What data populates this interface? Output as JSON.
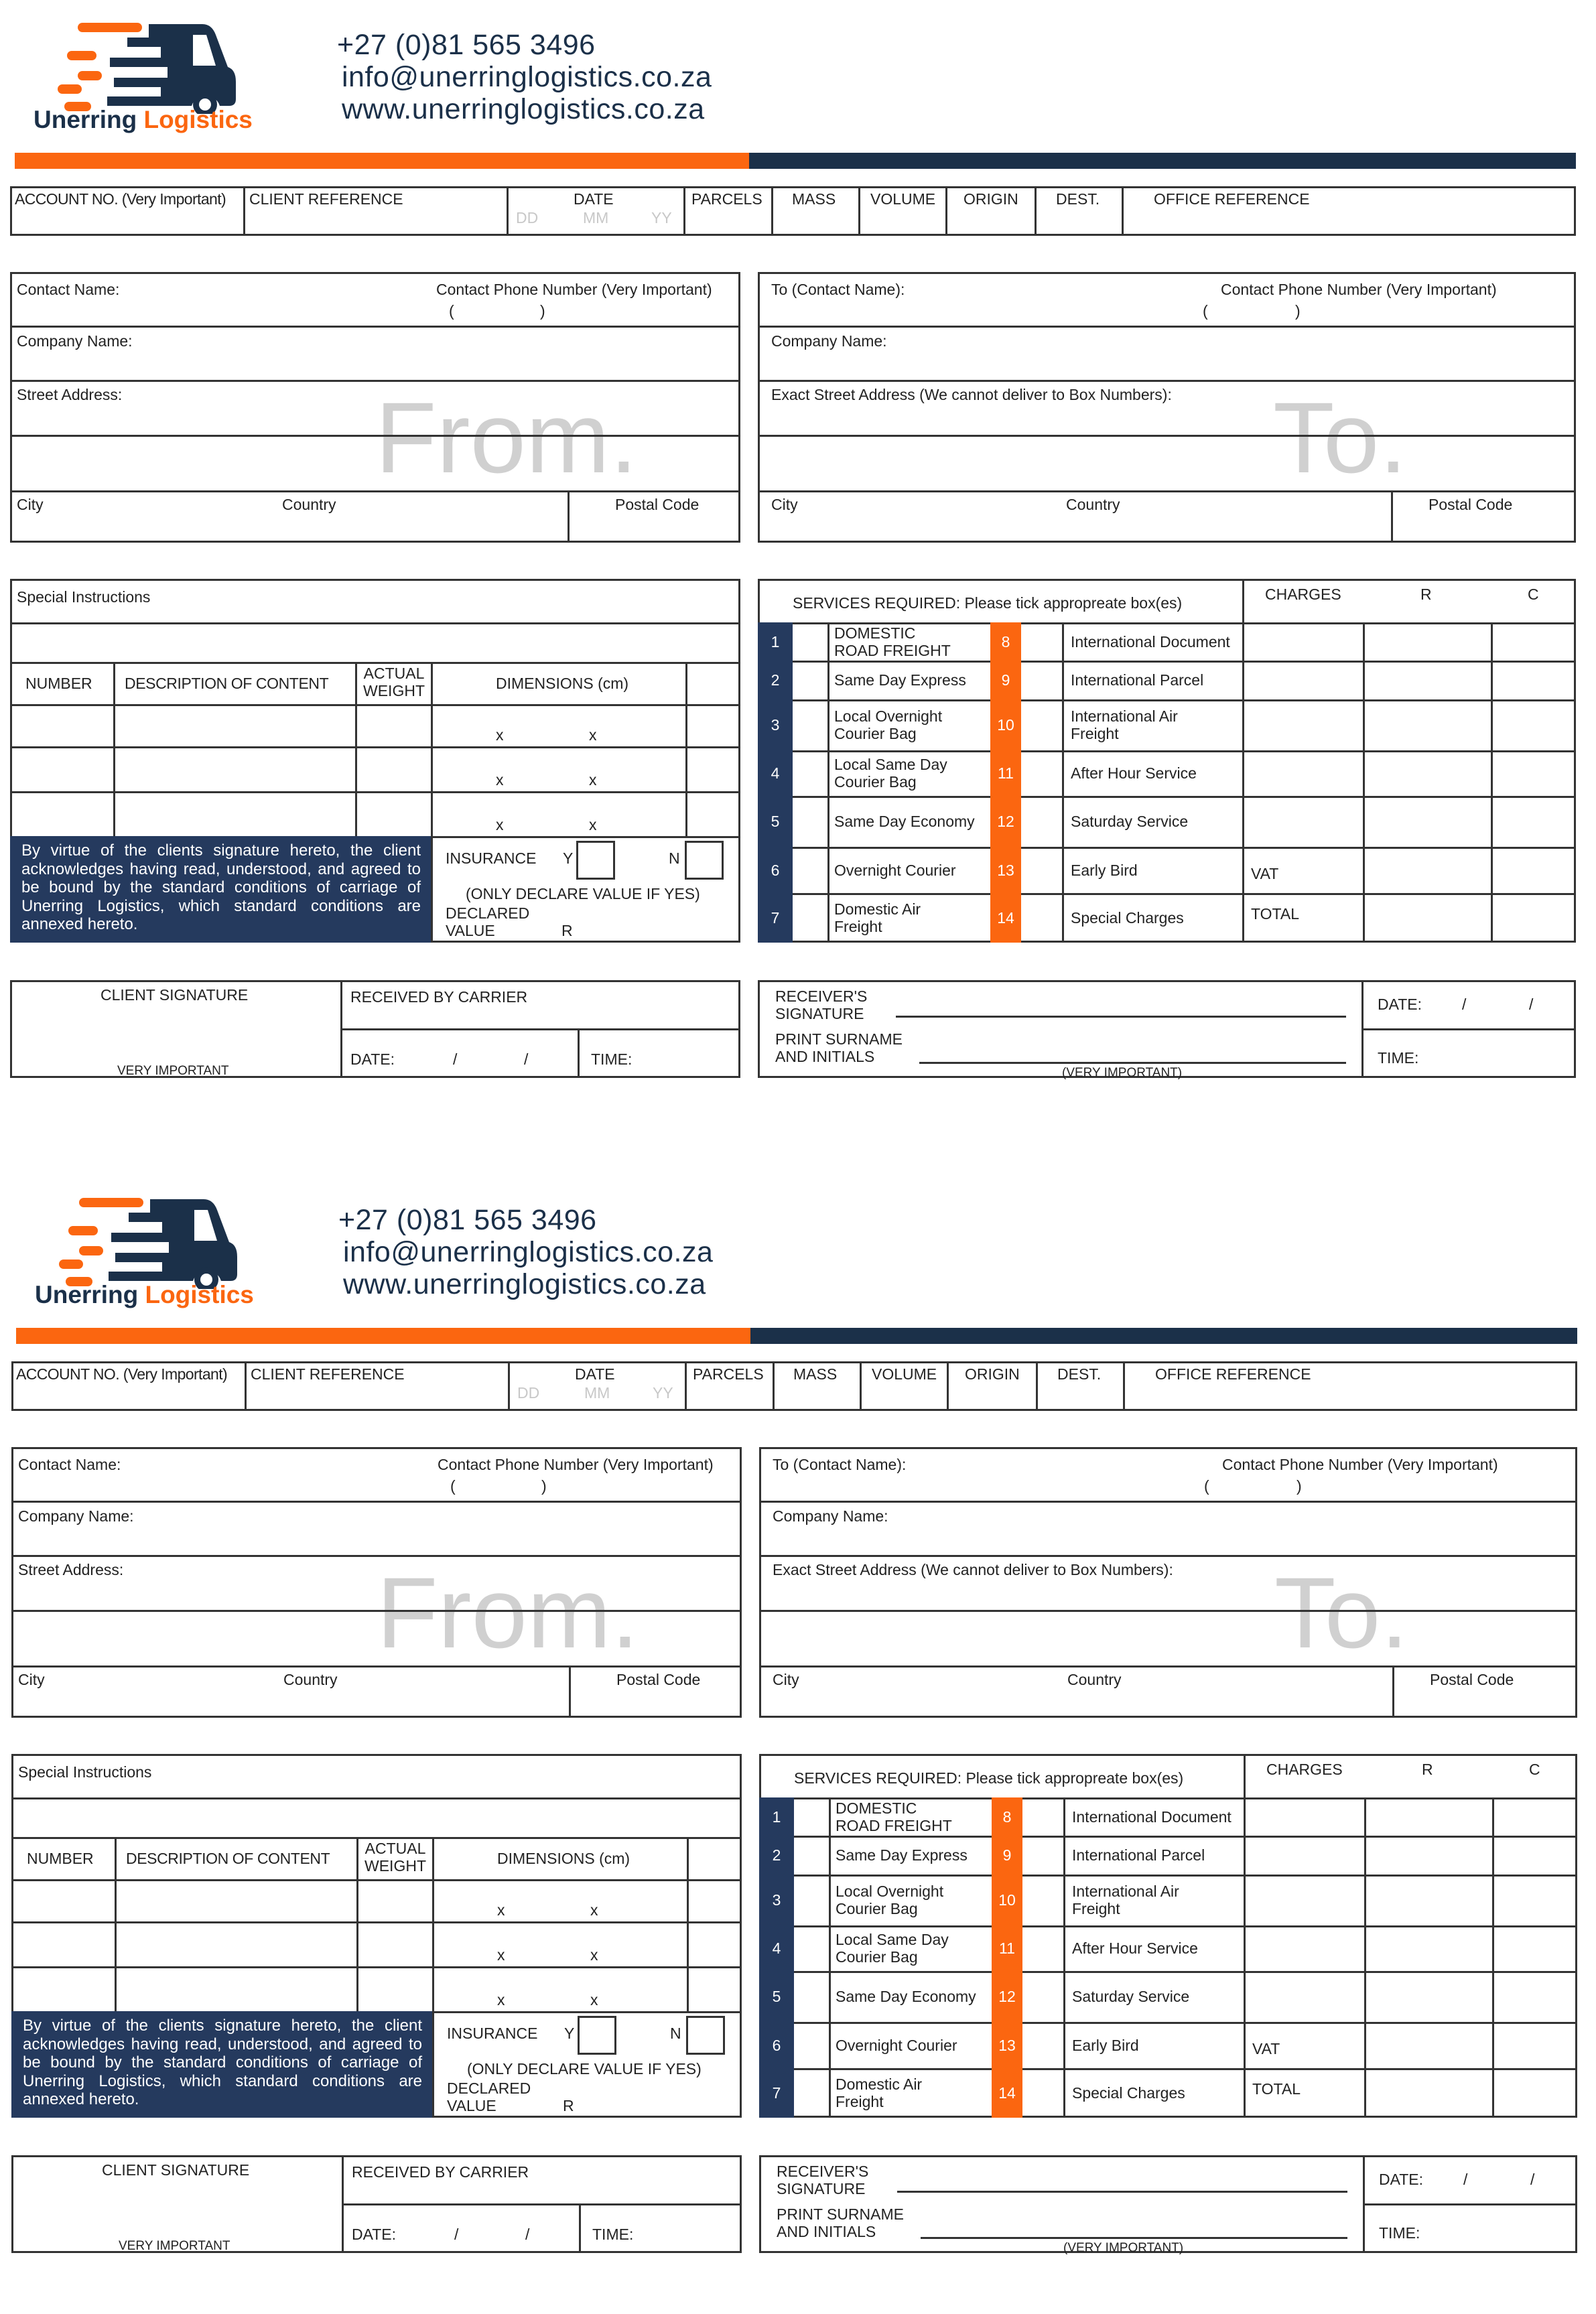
{
  "brand": {
    "name_part1": "Unerring",
    "name_part2": "Logistics",
    "colors": {
      "orange": "#fb6610",
      "navy": "#1b3049",
      "navy_panel": "#253a5e"
    },
    "logo_icon": "delivery-truck-icon"
  },
  "contact": {
    "phone": "+27 (0)81 565 3496",
    "email": "info@unerringlogistics.co.za",
    "website": "www.unerringlogistics.co.za"
  },
  "top_row": {
    "account_no": "ACCOUNT NO. (Very Important)",
    "client_reference": "CLIENT REFERENCE",
    "date": "DATE",
    "dd": "DD",
    "mm": "MM",
    "yy": "YY",
    "parcels": "PARCELS",
    "mass": "MASS",
    "volume": "VOLUME",
    "origin": "ORIGIN",
    "dest": "DEST.",
    "office_reference": "OFFICE REFERENCE"
  },
  "from": {
    "watermark": "From.",
    "contact_name": "Contact Name:",
    "contact_phone": "Contact Phone Number (Very Important)",
    "paren_open": "(",
    "paren_close": ")",
    "company_name": "Company Name:",
    "street_address": "Street Address:",
    "city": "City",
    "country": "Country",
    "postal_code": "Postal Code"
  },
  "to": {
    "watermark": "To.",
    "contact_name": "To (Contact Name):",
    "contact_phone": "Contact Phone Number (Very Important)",
    "paren_open": "(",
    "paren_close": ")",
    "company_name": "Company Name:",
    "street_address": "Exact Street Address (We cannot deliver to Box Numbers):",
    "city": "City",
    "country": "Country",
    "postal_code": "Postal Code"
  },
  "contents": {
    "special_instructions": "Special Instructions",
    "headers": {
      "number": "NUMBER",
      "description": "DESCRIPTION OF CONTENT",
      "actual_weight_1": "ACTUAL",
      "actual_weight_2": "WEIGHT",
      "dimensions": "DIMENSIONS (cm)"
    },
    "dimension_separator": "x",
    "row_count": 3,
    "terms": "By virtue of the clients signature hereto, the client acknowledges having read, understood, and agreed to be bound by the standard conditions of carriage of Unerring Logistics, which standard conditions are annexed hereto.",
    "insurance": "INSURANCE",
    "yes": "Y",
    "no": "N",
    "declare_note": "(ONLY DECLARE VALUE IF YES)",
    "declared_1": "DECLARED",
    "declared_2": "VALUE",
    "currency": "R"
  },
  "services": {
    "header": "SERVICES REQUIRED: Please tick appropreate box(es)",
    "charges": "CHARGES",
    "rand": "R",
    "cents": "C",
    "vat": "VAT",
    "total": "TOTAL",
    "rows": [
      {
        "left_no": "1",
        "left": "DOMESTIC\nROAD FREIGHT",
        "right_no": "8",
        "right": "International Document"
      },
      {
        "left_no": "2",
        "left": "Same Day Express",
        "right_no": "9",
        "right": "International Parcel"
      },
      {
        "left_no": "3",
        "left": "Local Overnight\nCourier Bag",
        "right_no": "10",
        "right": "International Air\nFreight"
      },
      {
        "left_no": "4",
        "left": "Local Same Day\nCourier Bag",
        "right_no": "11",
        "right": "After Hour Service"
      },
      {
        "left_no": "5",
        "left": "Same Day Economy",
        "right_no": "12",
        "right": "Saturday Service"
      },
      {
        "left_no": "6",
        "left": "Overnight Courier",
        "right_no": "13",
        "right": "Early Bird"
      },
      {
        "left_no": "7",
        "left": "Domestic Air\nFreight",
        "right_no": "14",
        "right": "Special Charges"
      }
    ]
  },
  "signature": {
    "client_signature": "CLIENT SIGNATURE",
    "very_important": "VERY IMPORTANT",
    "received_by_carrier": "RECEIVED BY CARRIER",
    "date": "DATE:",
    "slash": "/",
    "time": "TIME:"
  },
  "receiver": {
    "signature_1": "RECEIVER'S",
    "signature_2": "SIGNATURE",
    "print_1": "PRINT SURNAME",
    "print_2": "AND INITIALS",
    "very_important": "(VERY IMPORTANT)",
    "date": "DATE:",
    "slash": "/",
    "time": "TIME:"
  }
}
